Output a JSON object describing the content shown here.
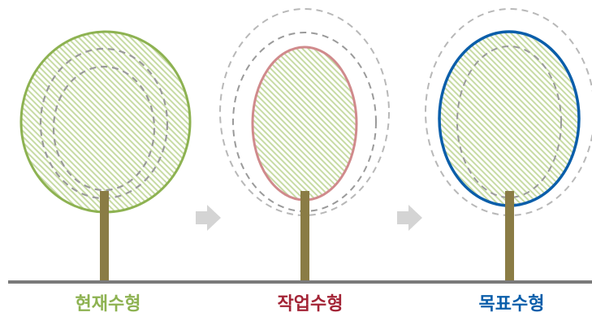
{
  "captions": {
    "current": "현재수형",
    "work": "작업수형",
    "target": "목표수형"
  },
  "colors": {
    "current": "#8db251",
    "work": "#a32436",
    "work_outline": "#d08a8c",
    "target": "#0a5eaa",
    "trunk": "#8a7c45",
    "ground": "#7a7a7a",
    "arrow": "#d4d4d4",
    "dashed": "#9a9a9a",
    "dashed_light": "#b8b8b8",
    "hatch": "#c7dba4"
  },
  "stages": [
    {
      "name": "current",
      "icon": "tree-canopy-icon"
    },
    {
      "name": "work",
      "icon": "tree-canopy-icon"
    },
    {
      "name": "target",
      "icon": "tree-canopy-icon"
    }
  ]
}
